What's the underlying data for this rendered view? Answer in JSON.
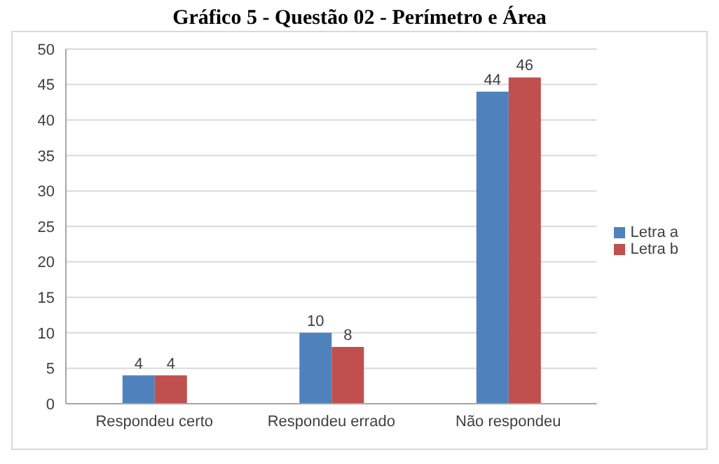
{
  "chart_data": {
    "type": "bar",
    "title": "Gráfico 5 - Questão 02 - Perímetro e Área",
    "categories": [
      "Respondeu certo",
      "Respondeu errado",
      "Não respondeu"
    ],
    "series": [
      {
        "name": "Letra a",
        "color": "#4f81bd",
        "values": [
          4,
          10,
          44
        ]
      },
      {
        "name": "Letra b",
        "color": "#c0504d",
        "values": [
          4,
          8,
          46
        ]
      }
    ],
    "ylim": [
      0,
      50
    ],
    "yticks": [
      0,
      5,
      10,
      15,
      20,
      25,
      30,
      35,
      40,
      45,
      50
    ],
    "grid": "y",
    "legend": "right",
    "data_labels": true
  }
}
